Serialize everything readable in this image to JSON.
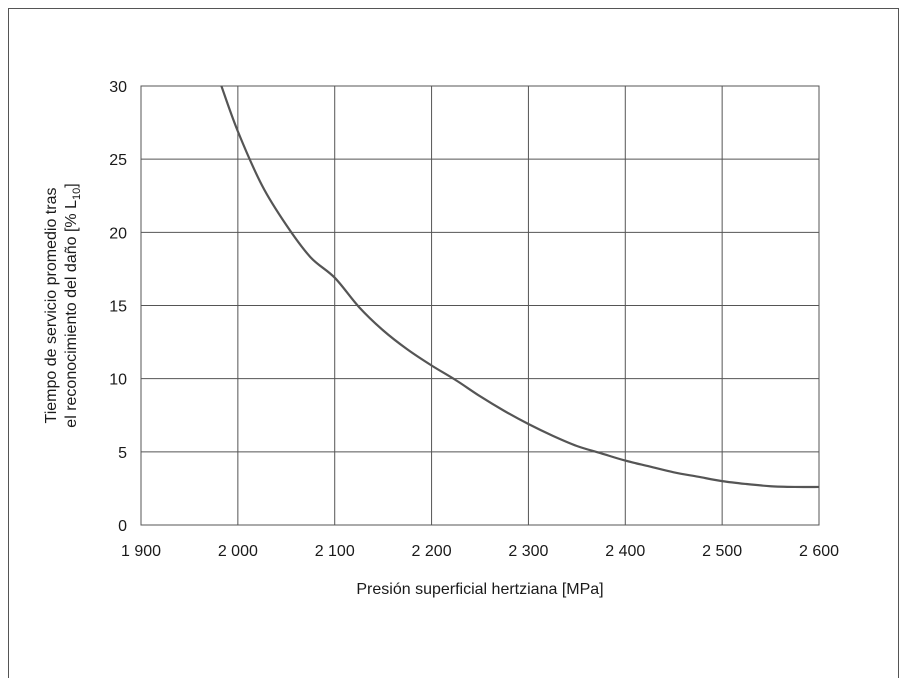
{
  "chart_data": {
    "type": "line",
    "title": "",
    "xlabel": "Presión superficial hertziana [MPa]",
    "ylabel_line1": "Tiempo de servicio promedio tras",
    "ylabel_line2_main": "el reconocimiento del daño [% L",
    "ylabel_line2_sub": "10",
    "ylabel_line2_end": "]",
    "xlim": [
      1900,
      2600
    ],
    "ylim": [
      0,
      30
    ],
    "x_ticks": [
      1900,
      2000,
      2100,
      2200,
      2300,
      2400,
      2500,
      2600
    ],
    "x_tick_labels": [
      "1 900",
      "2 000",
      "2 100",
      "2 200",
      "2 300",
      "2 400",
      "2 500",
      "2 600"
    ],
    "y_ticks": [
      0,
      5,
      10,
      15,
      20,
      25,
      30
    ],
    "y_tick_labels": [
      "0",
      "5",
      "10",
      "15",
      "20",
      "25",
      "30"
    ],
    "grid": true,
    "series": [
      {
        "x": [
          1983,
          2000,
          2025,
          2050,
          2075,
          2100,
          2125,
          2150,
          2175,
          2200,
          2225,
          2250,
          2275,
          2300,
          2325,
          2350,
          2375,
          2400,
          2425,
          2450,
          2475,
          2500,
          2525,
          2550,
          2575,
          2600
        ],
        "y": [
          30,
          26.9,
          23.2,
          20.5,
          18.3,
          16.9,
          14.9,
          13.3,
          12.0,
          10.9,
          9.9,
          8.8,
          7.8,
          6.9,
          6.1,
          5.4,
          4.9,
          4.4,
          4.0,
          3.6,
          3.3,
          3.0,
          2.8,
          2.65,
          2.6,
          2.6
        ],
        "color": "#555555"
      }
    ]
  }
}
